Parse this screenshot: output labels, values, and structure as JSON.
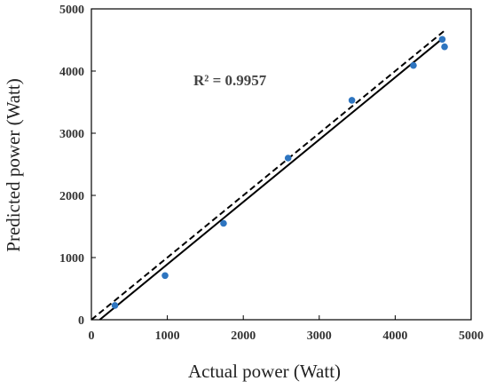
{
  "chart_data": {
    "type": "scatter",
    "title": "",
    "xlabel": "Actual power (Watt)",
    "ylabel": "Predicted power (Watt)",
    "xlim": [
      0,
      5000
    ],
    "ylim": [
      0,
      5000
    ],
    "xticks": [
      "0",
      "1000",
      "2000",
      "3000",
      "4000",
      "5000"
    ],
    "yticks": [
      "0",
      "1000",
      "2000",
      "3000",
      "4000",
      "5000"
    ],
    "grid": false,
    "legend": "none",
    "annotation": "R² = 0.9957",
    "points": {
      "x": [
        310,
        970,
        1740,
        2590,
        3430,
        4240,
        4620,
        4650
      ],
      "y": [
        230,
        710,
        1550,
        2600,
        3530,
        4090,
        4510,
        4390
      ]
    },
    "lines": [
      {
        "style": "solid",
        "from": [
          110,
          0
        ],
        "to": [
          4610,
          4510
        ]
      },
      {
        "style": "dashed",
        "from": [
          0,
          0
        ],
        "to": [
          4650,
          4650
        ]
      }
    ],
    "marker_color": "#2e75c0",
    "line_color": "#000000"
  }
}
